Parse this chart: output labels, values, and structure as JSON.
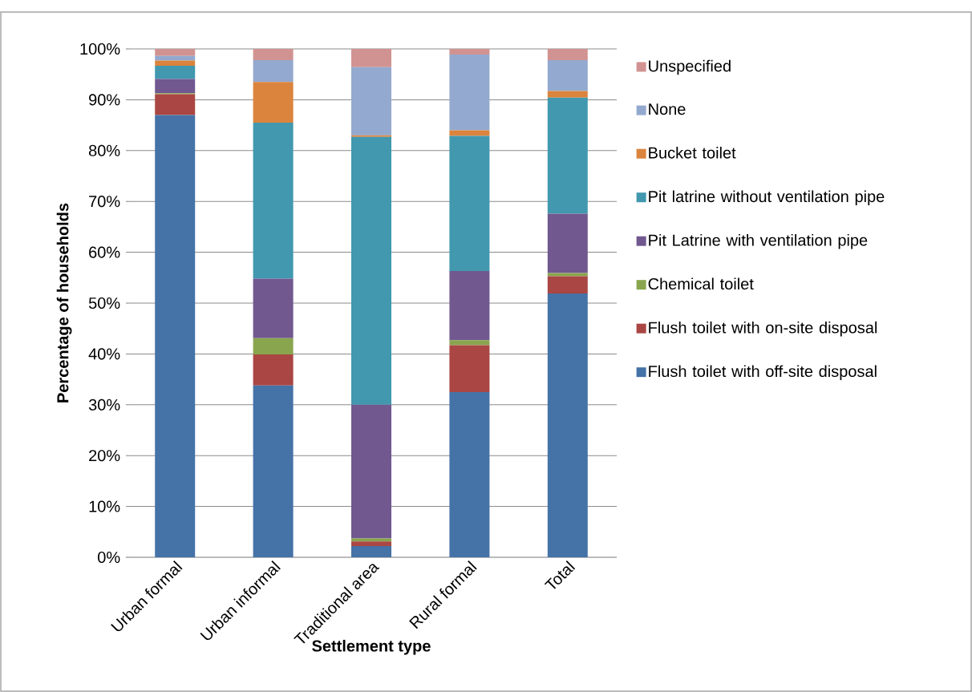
{
  "chart_data": {
    "type": "bar",
    "stacked": true,
    "xlabel": "Settlement type",
    "ylabel": "Percentage of households",
    "categories": [
      "Urban formal",
      "Urban informal",
      "Traditional area",
      "Rural formal",
      "Total"
    ],
    "series": [
      {
        "name": "Flush toilet with off-site disposal",
        "color": "#4572a7",
        "values": [
          87.0,
          33.8,
          2.2,
          32.5,
          51.9
        ]
      },
      {
        "name": "Flush toilet with on-site disposal",
        "color": "#aa4643",
        "values": [
          4.1,
          6.1,
          0.9,
          9.2,
          3.4
        ]
      },
      {
        "name": "Chemical toilet",
        "color": "#89a54e",
        "values": [
          0.2,
          3.2,
          0.6,
          1.0,
          0.6
        ]
      },
      {
        "name": "Pit Latrine with ventilation pipe",
        "color": "#71588f",
        "values": [
          2.8,
          11.7,
          26.3,
          13.6,
          11.7
        ]
      },
      {
        "name": "Pit latrine without ventilation pipe",
        "color": "#4198af",
        "values": [
          2.6,
          30.7,
          52.7,
          26.6,
          22.8
        ]
      },
      {
        "name": "Bucket toilet",
        "color": "#db843d",
        "values": [
          1.0,
          8.0,
          0.3,
          1.1,
          1.3
        ]
      },
      {
        "name": "None",
        "color": "#93a9cf",
        "values": [
          0.9,
          4.3,
          13.4,
          14.9,
          6.1
        ]
      },
      {
        "name": "Unspecified",
        "color": "#d19392",
        "values": [
          1.4,
          2.2,
          3.6,
          1.1,
          2.2
        ]
      }
    ],
    "ylim": [
      0,
      100
    ],
    "yticks": [
      {
        "value": 0,
        "label": "0%"
      },
      {
        "value": 10,
        "label": "10%"
      },
      {
        "value": 20,
        "label": "20%"
      },
      {
        "value": 30,
        "label": "30%"
      },
      {
        "value": 40,
        "label": "40%"
      },
      {
        "value": 50,
        "label": "50%"
      },
      {
        "value": 60,
        "label": "60%"
      },
      {
        "value": 70,
        "label": "70%"
      },
      {
        "value": 80,
        "label": "80%"
      },
      {
        "value": 90,
        "label": "90%"
      },
      {
        "value": 100,
        "label": "100%"
      }
    ],
    "grid": "y",
    "legend": "right"
  }
}
